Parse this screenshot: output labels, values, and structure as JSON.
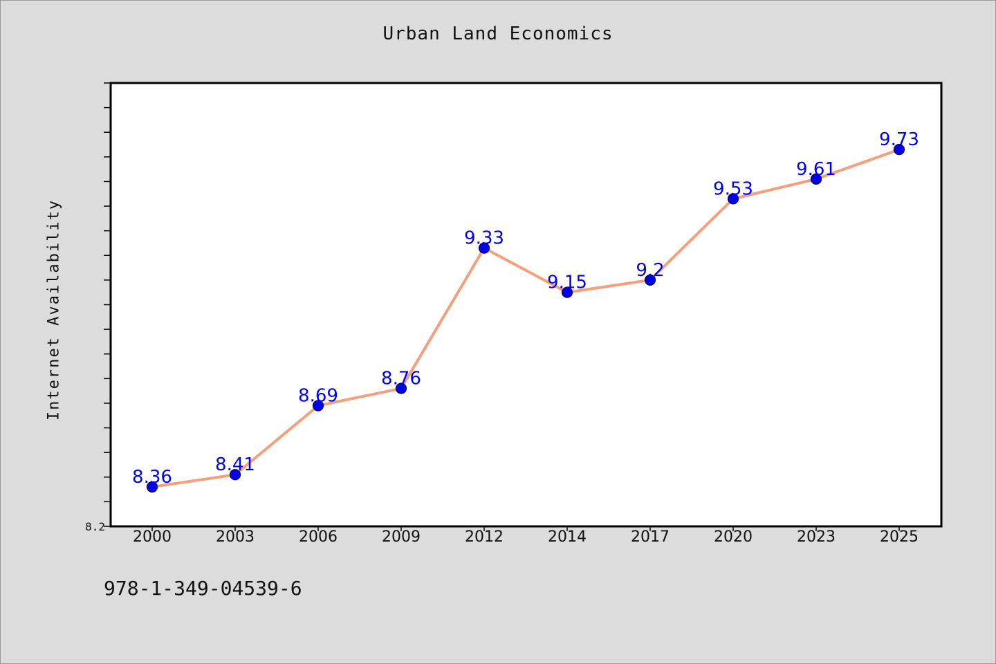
{
  "chart_data": {
    "type": "line",
    "title": "Urban Land Economics",
    "xlabel": "",
    "ylabel": "Internet Availability",
    "categories": [
      "2000",
      "2003",
      "2006",
      "2009",
      "2012",
      "2014",
      "2017",
      "2020",
      "2023",
      "2025"
    ],
    "series": [
      {
        "values": [
          8.36,
          8.41,
          8.69,
          8.76,
          9.33,
          9.15,
          9.2,
          9.53,
          9.61,
          9.73
        ],
        "data_labels": [
          "8.36",
          "8.41",
          "8.69",
          "8.76",
          "9.33",
          "9.15",
          "9.2",
          "9.53",
          "9.61",
          "9.73"
        ]
      }
    ],
    "ylim": [
      8.2,
      10.0
    ],
    "y_tick_labels": [
      "8.2"
    ],
    "grid": false,
    "legend": "none",
    "colors": {
      "line": "#f4a07f",
      "marker": "#0000ee",
      "marker_edge": "#000044",
      "data_label": "#0000ee",
      "plot_bg": "#ffffff",
      "page_bg": "#dcdcdc"
    }
  },
  "footnote": "978-1-349-04539-6"
}
